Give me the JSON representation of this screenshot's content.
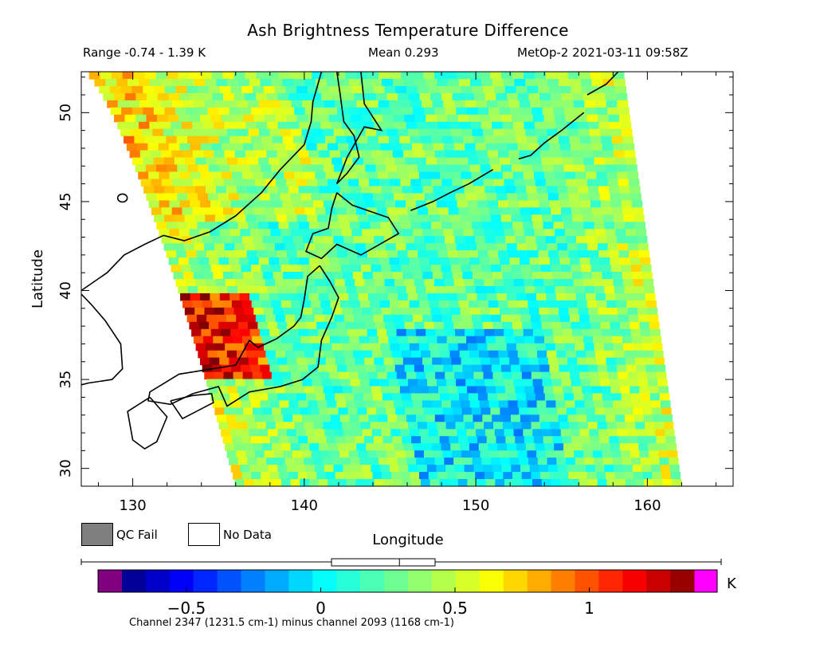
{
  "header": {
    "title": "Ash Brightness Temperature Difference",
    "range_text": "Range -0.74 - 1.39 K",
    "mean_text": "Mean 0.293",
    "platform_time": "MetOp-2 2021-03-11 09:58Z"
  },
  "legend": {
    "qc_fail_label": "QC Fail",
    "no_data_label": "No Data",
    "qc_fail_color": "#7f7f7f",
    "no_data_color": "#ffffff"
  },
  "colorbar": {
    "unit": "K",
    "range": [
      -0.74,
      1.39
    ],
    "ticks": [
      -0.5,
      0,
      0.5,
      1
    ],
    "tick_labels": [
      "−0.5",
      "0",
      "0.5",
      "1"
    ],
    "caption": "Channel 2347 (1231.5 cm-1) minus channel 2093 (1168 cm-1)",
    "under_color": "#800080",
    "over_color": "#ff00ff"
  },
  "chart_data": {
    "type": "heatmap",
    "title": "Ash Brightness Temperature Difference",
    "xlabel": "Longitude",
    "ylabel": "Latitude",
    "xlim": [
      127,
      165
    ],
    "ylim": [
      29,
      52.3
    ],
    "x_ticks": [
      130,
      140,
      150,
      160
    ],
    "y_ticks": [
      30,
      35,
      40,
      45,
      50
    ],
    "value_range": [
      -0.74,
      1.39
    ],
    "mean": 0.293,
    "units": "K",
    "swath_corners": {
      "top_left_lon": 127.2,
      "top_right_lon": 158.6,
      "bottom_left_lon": 136.0,
      "bottom_right_lon": 162.0
    },
    "value_regions": [
      {
        "region": "west edge of swath near 36-39N, 134-137E",
        "approx_value": 1.2
      },
      {
        "region": "northwest Sea of Japan",
        "approx_value": 0.5
      },
      {
        "region": "central Pacific east of Japan",
        "approx_value": 0.2
      },
      {
        "region": "eastern swath edge",
        "approx_value": 0.6
      }
    ]
  }
}
